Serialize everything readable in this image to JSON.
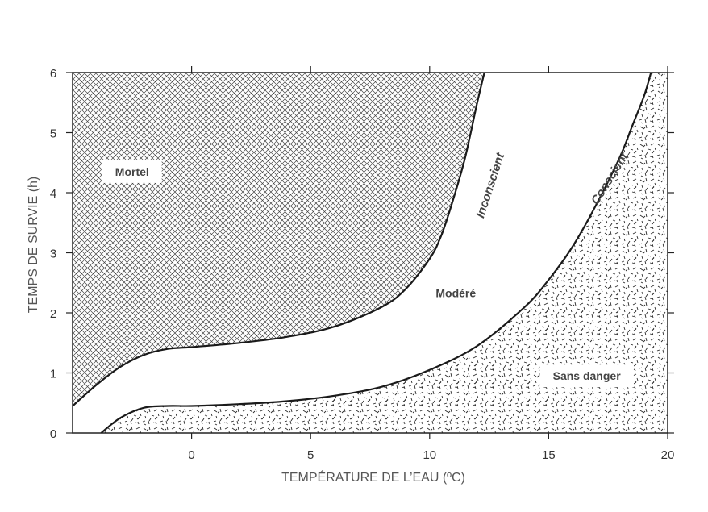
{
  "chart_data": {
    "type": "area",
    "title": "",
    "xlabel": "TEMPÉRATURE DE L’EAU (ºC)",
    "ylabel": "TEMPS DE SURVIE (h)",
    "xlim": [
      -5,
      20
    ],
    "ylim": [
      0,
      6
    ],
    "x_ticks": [
      0,
      5,
      10,
      15,
      20
    ],
    "y_ticks": [
      0,
      1,
      2,
      3,
      4,
      5,
      6
    ],
    "grid": false,
    "colors": {
      "line": "#1a1a1a",
      "hatch": "#444444",
      "speckle": "#2a2a2a",
      "background": "#ffffff"
    },
    "series": [
      {
        "name": "Inconscient",
        "x": [
          -5,
          -4,
          -3,
          -2,
          -1,
          0,
          2,
          4,
          6,
          8,
          9,
          10,
          10.5,
          11,
          11.5,
          12,
          12.3
        ],
        "y": [
          0.45,
          0.8,
          1.1,
          1.3,
          1.4,
          1.43,
          1.5,
          1.6,
          1.77,
          2.1,
          2.4,
          2.9,
          3.3,
          3.9,
          4.6,
          5.5,
          6.0
        ]
      },
      {
        "name": "Conscient",
        "x": [
          -3.8,
          -3,
          -2,
          -1,
          0,
          2,
          4,
          6,
          8,
          10,
          12,
          14,
          15,
          16,
          17,
          18,
          18.5,
          19,
          19.3
        ],
        "y": [
          0,
          0.25,
          0.42,
          0.45,
          0.45,
          0.48,
          0.53,
          0.62,
          0.77,
          1.05,
          1.45,
          2.1,
          2.55,
          3.1,
          3.8,
          4.6,
          5.1,
          5.6,
          6.0
        ]
      }
    ],
    "regions": [
      {
        "label": "Mortel",
        "x": -2.5,
        "y": 4.35
      },
      {
        "label": "Modéré",
        "x": 11.1,
        "y": 2.33
      },
      {
        "label": "Sans danger",
        "x": 16.6,
        "y": 0.95
      }
    ],
    "curve_labels": [
      {
        "text": "Inconscient",
        "x": 12.7,
        "y": 4.1,
        "angle": -72
      },
      {
        "text": "Conscient",
        "x": 17.7,
        "y": 4.2,
        "angle": -58
      }
    ]
  }
}
